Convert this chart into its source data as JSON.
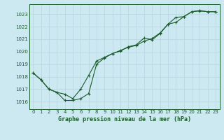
{
  "title": "Graphe pression niveau de la mer (hPa)",
  "bg_color": "#cce8f0",
  "grid_color": "#aaccdd",
  "line_color": "#1a5c2a",
  "xlim": [
    -0.5,
    23.5
  ],
  "ylim": [
    1015.4,
    1023.8
  ],
  "xticks": [
    0,
    1,
    2,
    3,
    4,
    5,
    6,
    7,
    8,
    9,
    10,
    11,
    12,
    13,
    14,
    15,
    16,
    17,
    18,
    19,
    20,
    21,
    22,
    23
  ],
  "yticks": [
    1016,
    1017,
    1018,
    1019,
    1020,
    1021,
    1022,
    1023
  ],
  "series1_x": [
    0,
    1,
    2,
    3,
    4,
    5,
    6,
    7,
    8,
    9,
    10,
    11,
    12,
    13,
    14,
    15,
    16,
    17,
    18,
    19,
    20,
    21,
    22,
    23
  ],
  "series1_y": [
    1018.3,
    1017.75,
    1017.0,
    1016.75,
    1016.1,
    1016.1,
    1016.25,
    1016.65,
    1019.0,
    1019.5,
    1019.85,
    1020.1,
    1020.35,
    1020.5,
    1020.85,
    1021.05,
    1021.5,
    1022.2,
    1022.35,
    1022.8,
    1023.2,
    1023.25,
    1023.2,
    1023.2
  ],
  "series2_x": [
    0,
    1,
    2,
    3,
    4,
    5,
    6,
    7,
    8,
    9,
    10,
    11,
    12,
    13,
    14,
    15,
    16,
    17,
    18,
    19,
    20,
    21,
    22,
    23
  ],
  "series2_y": [
    1018.3,
    1017.75,
    1017.0,
    1016.75,
    1016.6,
    1016.25,
    1017.0,
    1018.1,
    1019.25,
    1019.55,
    1019.85,
    1020.05,
    1020.4,
    1020.55,
    1021.1,
    1020.95,
    1021.45,
    1022.2,
    1022.75,
    1022.8,
    1023.2,
    1023.3,
    1023.2,
    1023.2
  ]
}
